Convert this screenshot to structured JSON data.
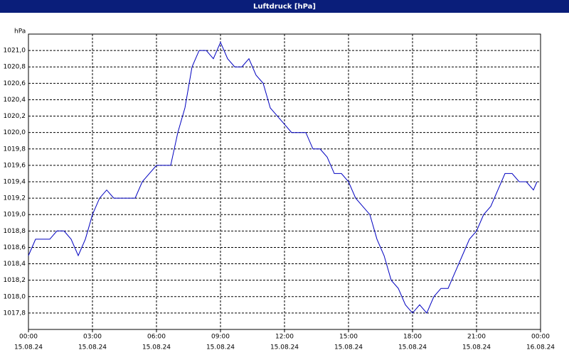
{
  "chart_data": {
    "type": "line",
    "title": "Luftdruck [hPa]",
    "y_label": "hPa",
    "color": "#0000c0",
    "grid": true,
    "x": [
      "2024-08-15T00:00",
      "2024-08-15T00:20",
      "2024-08-15T00:40",
      "2024-08-15T01:00",
      "2024-08-15T01:20",
      "2024-08-15T01:40",
      "2024-08-15T02:00",
      "2024-08-15T02:20",
      "2024-08-15T02:40",
      "2024-08-15T03:00",
      "2024-08-15T03:20",
      "2024-08-15T03:40",
      "2024-08-15T04:00",
      "2024-08-15T04:20",
      "2024-08-15T04:40",
      "2024-08-15T05:00",
      "2024-08-15T05:20",
      "2024-08-15T05:40",
      "2024-08-15T06:00",
      "2024-08-15T06:20",
      "2024-08-15T06:40",
      "2024-08-15T07:00",
      "2024-08-15T07:20",
      "2024-08-15T07:40",
      "2024-08-15T08:00",
      "2024-08-15T08:20",
      "2024-08-15T08:40",
      "2024-08-15T09:00",
      "2024-08-15T09:20",
      "2024-08-15T09:40",
      "2024-08-15T10:00",
      "2024-08-15T10:20",
      "2024-08-15T10:40",
      "2024-08-15T11:00",
      "2024-08-15T11:20",
      "2024-08-15T11:40",
      "2024-08-15T12:00",
      "2024-08-15T12:20",
      "2024-08-15T12:40",
      "2024-08-15T13:00",
      "2024-08-15T13:20",
      "2024-08-15T13:40",
      "2024-08-15T14:00",
      "2024-08-15T14:20",
      "2024-08-15T14:40",
      "2024-08-15T15:00",
      "2024-08-15T15:20",
      "2024-08-15T15:40",
      "2024-08-15T16:00",
      "2024-08-15T16:20",
      "2024-08-15T16:40",
      "2024-08-15T17:00",
      "2024-08-15T17:20",
      "2024-08-15T17:40",
      "2024-08-15T18:00",
      "2024-08-15T18:20",
      "2024-08-15T18:40",
      "2024-08-15T19:00",
      "2024-08-15T19:20",
      "2024-08-15T19:40",
      "2024-08-15T20:00",
      "2024-08-15T20:20",
      "2024-08-15T20:40",
      "2024-08-15T21:00",
      "2024-08-15T21:20",
      "2024-08-15T21:40",
      "2024-08-15T22:00",
      "2024-08-15T22:20",
      "2024-08-15T22:40",
      "2024-08-15T23:00",
      "2024-08-15T23:20",
      "2024-08-15T23:40",
      "2024-08-15T23:50"
    ],
    "values": [
      1018.5,
      1018.7,
      1018.7,
      1018.7,
      1018.8,
      1018.8,
      1018.7,
      1018.5,
      1018.7,
      1019.0,
      1019.2,
      1019.3,
      1019.2,
      1019.2,
      1019.2,
      1019.2,
      1019.4,
      1019.5,
      1019.6,
      1019.6,
      1019.6,
      1020.0,
      1020.3,
      1020.8,
      1021.0,
      1021.0,
      1020.9,
      1021.1,
      1020.9,
      1020.8,
      1020.8,
      1020.9,
      1020.7,
      1020.6,
      1020.3,
      1020.2,
      1020.1,
      1020.0,
      1020.0,
      1020.0,
      1019.8,
      1019.8,
      1019.7,
      1019.5,
      1019.5,
      1019.4,
      1019.2,
      1019.1,
      1019.0,
      1018.7,
      1018.5,
      1018.2,
      1018.1,
      1017.9,
      1017.8,
      1017.9,
      1017.8,
      1018.0,
      1018.1,
      1018.1,
      1018.3,
      1018.5,
      1018.7,
      1018.8,
      1019.0,
      1019.1,
      1019.3,
      1019.5,
      1019.5,
      1019.4,
      1019.4,
      1019.3,
      1019.4
    ],
    "xlim": [
      "2024-08-15T00:00",
      "2024-08-16T00:00"
    ],
    "xticks": [
      {
        "value": "2024-08-15T00:00",
        "label": [
          "00:00",
          "15.08.24"
        ]
      },
      {
        "value": "2024-08-15T03:00",
        "label": [
          "03:00",
          "15.08.24"
        ]
      },
      {
        "value": "2024-08-15T06:00",
        "label": [
          "06:00",
          "15.08.24"
        ]
      },
      {
        "value": "2024-08-15T09:00",
        "label": [
          "09:00",
          "15.08.24"
        ]
      },
      {
        "value": "2024-08-15T12:00",
        "label": [
          "12:00",
          "15.08.24"
        ]
      },
      {
        "value": "2024-08-15T15:00",
        "label": [
          "15:00",
          "15.08.24"
        ]
      },
      {
        "value": "2024-08-15T18:00",
        "label": [
          "18:00",
          "15.08.24"
        ]
      },
      {
        "value": "2024-08-15T21:00",
        "label": [
          "21:00",
          "15.08.24"
        ]
      },
      {
        "value": "2024-08-16T00:00",
        "label": [
          "00:00",
          "16.08.24"
        ]
      }
    ],
    "ylim": [
      1017.6,
      1021.2
    ],
    "yticks": [
      {
        "value": 1017.8,
        "label": "1017,8"
      },
      {
        "value": 1018.0,
        "label": "1018,0"
      },
      {
        "value": 1018.2,
        "label": "1018,2"
      },
      {
        "value": 1018.4,
        "label": "1018,4"
      },
      {
        "value": 1018.6,
        "label": "1018,6"
      },
      {
        "value": 1018.8,
        "label": "1018,8"
      },
      {
        "value": 1019.0,
        "label": "1019,0"
      },
      {
        "value": 1019.2,
        "label": "1019,2"
      },
      {
        "value": 1019.4,
        "label": "1019,4"
      },
      {
        "value": 1019.6,
        "label": "1019,6"
      },
      {
        "value": 1019.8,
        "label": "1019,8"
      },
      {
        "value": 1020.0,
        "label": "1020,0"
      },
      {
        "value": 1020.2,
        "label": "1020,2"
      },
      {
        "value": 1020.4,
        "label": "1020,4"
      },
      {
        "value": 1020.6,
        "label": "1020,6"
      },
      {
        "value": 1020.8,
        "label": "1020,8"
      },
      {
        "value": 1021.0,
        "label": "1021,0"
      }
    ]
  }
}
